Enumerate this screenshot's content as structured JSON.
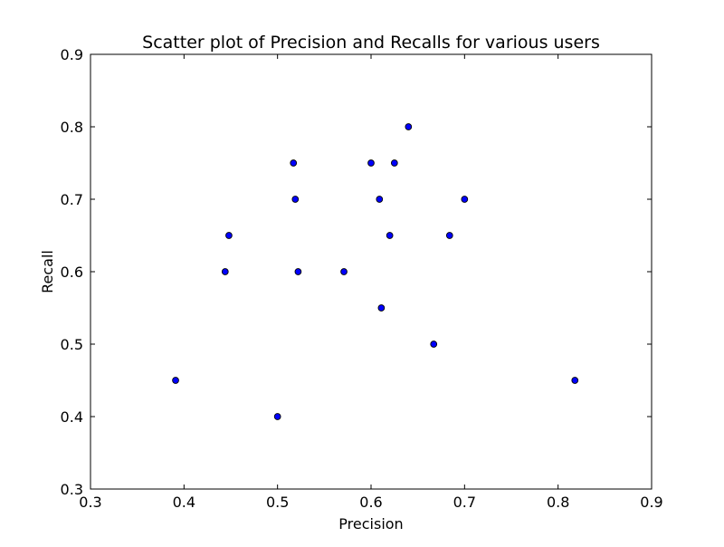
{
  "chart_data": {
    "type": "scatter",
    "title": "Scatter plot of Precision and Recalls for various users",
    "xlabel": "Precision",
    "ylabel": "Recall",
    "xlim": [
      0.3,
      0.9
    ],
    "ylim": [
      0.3,
      0.9
    ],
    "xticks": [
      "0.3",
      "0.4",
      "0.5",
      "0.6",
      "0.7",
      "0.8",
      "0.9"
    ],
    "yticks": [
      "0.3",
      "0.4",
      "0.5",
      "0.6",
      "0.7",
      "0.8",
      "0.9"
    ],
    "grid": false,
    "legend": "none",
    "marker_color": "#0000ff",
    "marker_edge_color": "#000000",
    "points": [
      {
        "x": 0.391,
        "y": 0.45
      },
      {
        "x": 0.444,
        "y": 0.6
      },
      {
        "x": 0.448,
        "y": 0.65
      },
      {
        "x": 0.5,
        "y": 0.4
      },
      {
        "x": 0.517,
        "y": 0.75
      },
      {
        "x": 0.519,
        "y": 0.7
      },
      {
        "x": 0.522,
        "y": 0.6
      },
      {
        "x": 0.571,
        "y": 0.6
      },
      {
        "x": 0.6,
        "y": 0.75
      },
      {
        "x": 0.609,
        "y": 0.7
      },
      {
        "x": 0.611,
        "y": 0.55
      },
      {
        "x": 0.62,
        "y": 0.65
      },
      {
        "x": 0.625,
        "y": 0.75
      },
      {
        "x": 0.64,
        "y": 0.8
      },
      {
        "x": 0.667,
        "y": 0.5
      },
      {
        "x": 0.684,
        "y": 0.65
      },
      {
        "x": 0.7,
        "y": 0.7
      },
      {
        "x": 0.818,
        "y": 0.45
      }
    ]
  }
}
